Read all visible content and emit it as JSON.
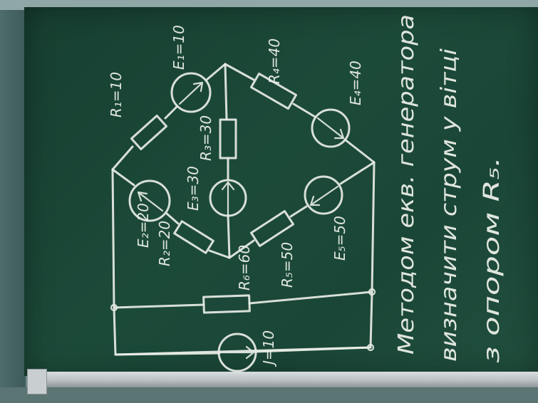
{
  "circuit_labels": {
    "r1": "R₁=10",
    "e1": "E₁=10",
    "r4": "R₄=40",
    "e4": "E₄=40",
    "r3": "R₃=30",
    "e3": "E₃=30",
    "e2": "E₂=20",
    "r2": "R₂=20",
    "r6": "R₆=60",
    "r5": "R₅=50",
    "e5": "E₅=50",
    "j": "J=10"
  },
  "task_text": {
    "line1": "Методом екв. генератора",
    "line2": "визначити струм у вітці",
    "line3": "з опором R₅."
  },
  "colors": {
    "board": "#1c4a39",
    "chalk": "#e8ede6",
    "tray": "#c4cacd"
  }
}
